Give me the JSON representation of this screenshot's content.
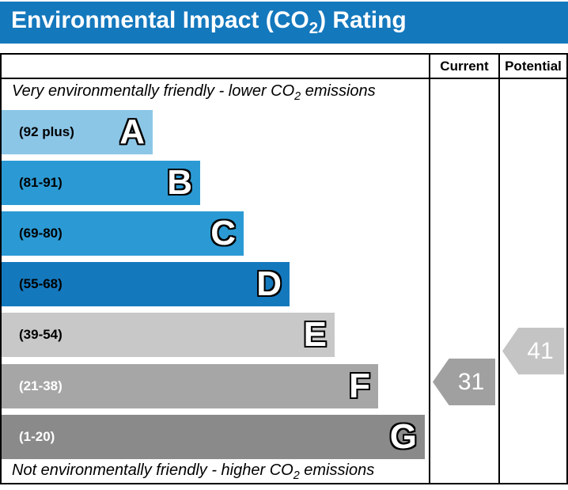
{
  "title": {
    "pre": "Environmental Impact (CO",
    "sub": "2",
    "post": ") Rating"
  },
  "table": {
    "header": {
      "current": "Current",
      "potential": "Potential"
    },
    "top_caption": {
      "pre": "Very environmentally friendly - lower CO",
      "sub": "2",
      "post": " emissions"
    },
    "bottom_caption": {
      "pre": "Not environmentally friendly - higher CO",
      "sub": "2",
      "post": " emissions"
    }
  },
  "colors": {
    "title_bar": "#1478bd",
    "border": "#000000"
  },
  "chart_data": {
    "type": "bar",
    "orientation": "horizontal",
    "title": "Environmental Impact (CO2) Rating",
    "categories": [
      "A",
      "B",
      "C",
      "D",
      "E",
      "F",
      "G"
    ],
    "bands": [
      {
        "letter": "A",
        "range": "(92 plus)",
        "min": 92,
        "color": "#8cc6e7",
        "label_color": "#000000"
      },
      {
        "letter": "B",
        "range": "(81-91)",
        "min": 81,
        "max": 91,
        "color": "#2b9ad4",
        "label_color": "#000000"
      },
      {
        "letter": "C",
        "range": "(69-80)",
        "min": 69,
        "max": 80,
        "color": "#2b9ad4",
        "label_color": "#000000"
      },
      {
        "letter": "D",
        "range": "(55-68)",
        "min": 55,
        "max": 68,
        "color": "#1478bd",
        "label_color": "#000000"
      },
      {
        "letter": "E",
        "range": "(39-54)",
        "min": 39,
        "max": 54,
        "color": "#c8c8c8",
        "label_color": "#000000"
      },
      {
        "letter": "F",
        "range": "(21-38)",
        "min": 21,
        "max": 38,
        "color": "#a6a6a6",
        "label_color": "#ffffff"
      },
      {
        "letter": "G",
        "range": "(1-20)",
        "min": 1,
        "max": 20,
        "color": "#8a8a8a",
        "label_color": "#ffffff"
      }
    ],
    "current": {
      "value": 31,
      "band": "F",
      "color": "#a0a0a0",
      "text_color": "#ffffff"
    },
    "potential": {
      "value": 41,
      "band": "E",
      "color": "#c4c4c4",
      "text_color": "#ffffff"
    }
  }
}
